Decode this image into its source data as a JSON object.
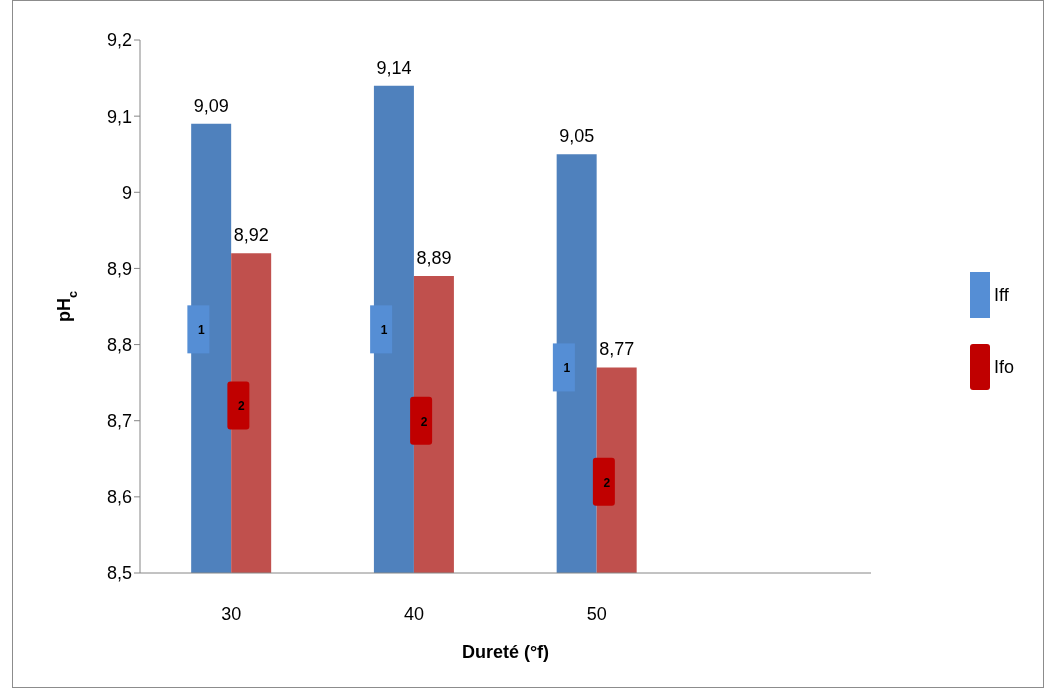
{
  "chart_data": {
    "type": "bar",
    "xlabel": "Dureté (°f)",
    "ylabel": "pH$_{c}$",
    "categories": [
      "30",
      "40",
      "50",
      null
    ],
    "series": [
      {
        "name": "Iff",
        "color": "#4f81bd",
        "values": [
          9.09,
          9.14,
          9.05,
          null
        ],
        "value_labels": [
          "9,09",
          "9,14",
          "9,05",
          null
        ]
      },
      {
        "name": "Ifo",
        "color": "#c0504d",
        "values": [
          8.92,
          8.89,
          8.77,
          null
        ],
        "value_labels": [
          "8,92",
          "8,89",
          "8,77",
          null
        ]
      }
    ],
    "ylim": [
      8.5,
      9.2
    ],
    "yticks": [
      {
        "value": 8.5,
        "label": "8,5"
      },
      {
        "value": 8.6,
        "label": "8,6"
      },
      {
        "value": 8.7,
        "label": "8,7"
      },
      {
        "value": 8.8,
        "label": "8,8"
      },
      {
        "value": 8.9,
        "label": "8,9"
      },
      {
        "value": 9,
        "label": "9"
      },
      {
        "value": 9.1,
        "label": "9,1"
      },
      {
        "value": 9.2,
        "label": "9,2"
      }
    ],
    "grid": false,
    "legend": "right",
    "annotations": [
      {
        "text": "1",
        "x": "30",
        "y": 8.82
      },
      {
        "text": "2",
        "x": "30",
        "y": 8.72
      },
      {
        "text": "1",
        "x": "40",
        "y": 8.82
      },
      {
        "text": "2",
        "x": "40",
        "y": 8.7
      },
      {
        "text": "1",
        "x": "50",
        "y": 8.77
      },
      {
        "text": "2",
        "x": "50",
        "y": 8.62
      }
    ]
  }
}
